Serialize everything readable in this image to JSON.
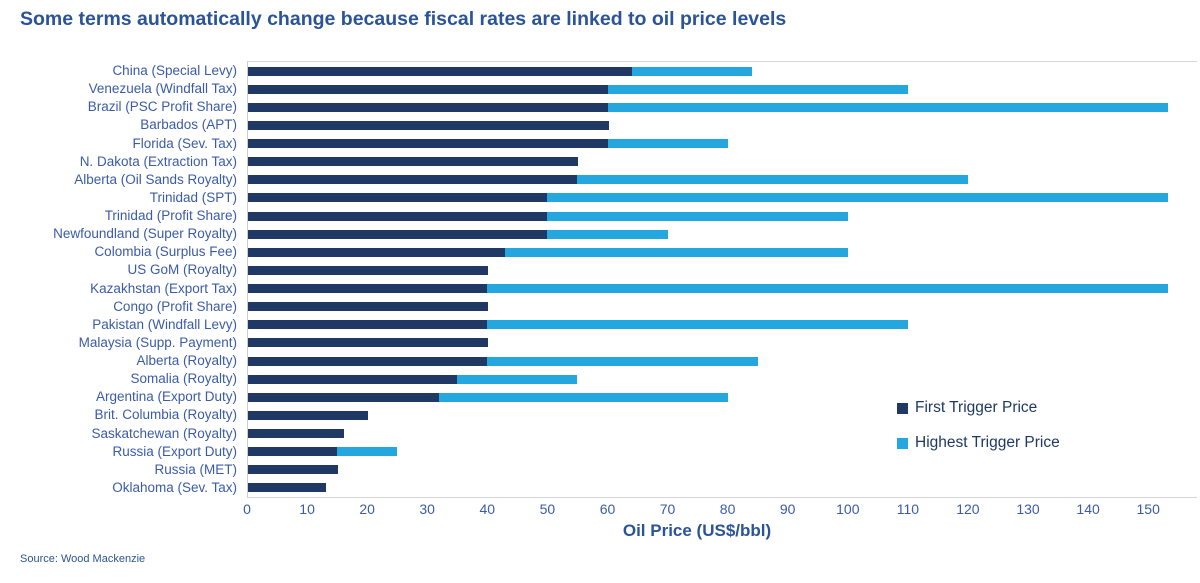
{
  "title": "Some terms automatically change because fiscal rates are linked to oil price levels",
  "source": "Source: Wood Mackenzie",
  "colors": {
    "first_trigger": "#1F3864",
    "highest_trigger": "#24A7DF",
    "title_text": "#2A5497",
    "label_text": "#3A5BA9",
    "legend_text": "#1F3864",
    "axis_line": "#D6D6D6"
  },
  "legend": [
    {
      "label": "First Trigger Price",
      "color": "#1F3864"
    },
    {
      "label": "Highest Trigger Price",
      "color": "#24A7DF"
    }
  ],
  "chart_data": {
    "type": "bar",
    "orientation": "horizontal",
    "title": "Some terms automatically change because fiscal rates are linked to oil price levels",
    "xlabel": "Oil Price (US$/bbl)",
    "xlim": [
      0,
      153.3
    ],
    "xticks": [
      0,
      10,
      20,
      30,
      40,
      50,
      60,
      70,
      80,
      90,
      100,
      110,
      120,
      130,
      140,
      150
    ],
    "grid": false,
    "legend_position": "right-center",
    "categories": [
      "China (Special Levy)",
      "Venezuela (Windfall Tax)",
      "Brazil (PSC Profit Share)",
      "Barbados (APT)",
      "Florida (Sev. Tax)",
      "N. Dakota (Extraction Tax)",
      "Alberta (Oil Sands Royalty)",
      "Trinidad (SPT)",
      "Trinidad (Profit Share)",
      "Newfoundland (Super Royalty)",
      "Colombia (Surplus Fee)",
      "US GoM (Royalty)",
      "Kazakhstan (Export Tax)",
      "Congo (Profit Share)",
      "Pakistan (Windfall Levy)",
      "Malaysia (Supp. Payment)",
      "Alberta (Royalty)",
      "Somalia (Royalty)",
      "Argentina (Export Duty)",
      "Brit. Columbia (Royalty)",
      "Saskatchewan (Royalty)",
      "Russia (Export Duty)",
      "Russia (MET)",
      "Oklahoma (Sev. Tax)"
    ],
    "series": [
      {
        "name": "First Trigger Price",
        "color": "#1F3864",
        "values": [
          64,
          60,
          60,
          60,
          60,
          55,
          55,
          50,
          50,
          50,
          43,
          40,
          40,
          40,
          40,
          40,
          40,
          35,
          32,
          20,
          16,
          15,
          15,
          13
        ]
      },
      {
        "name": "Highest Trigger Price",
        "color": "#24A7DF",
        "values": [
          84,
          110,
          153.3,
          null,
          80,
          null,
          120,
          153.3,
          100,
          70,
          100,
          null,
          153.3,
          null,
          110,
          null,
          85,
          55,
          80,
          null,
          null,
          25,
          null,
          null
        ],
        "note": "Values are the bar end positions on the oil-price axis; 153.3 entries (Brazil PSC Profit Share, Trinidad SPT, Kazakhstan Export Tax) are clipped at the right edge of the plot, i.e. actual trigger exceeds 150. Null means no light-blue segment shown."
      }
    ]
  }
}
